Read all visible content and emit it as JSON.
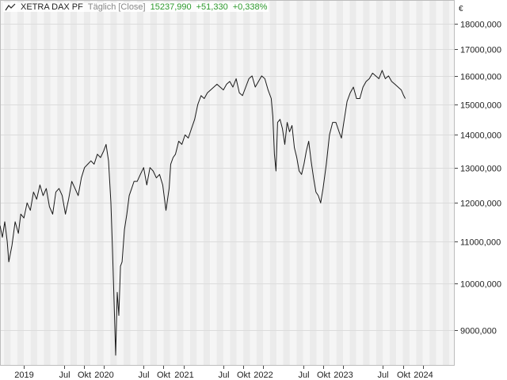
{
  "legend": {
    "symbol": "XETRA DAX PF",
    "period": "Täglich [Close]",
    "last": "15237,990",
    "change": "+51,330",
    "change_pct": "+0,338%"
  },
  "colors": {
    "band_light": "#f5f5f5",
    "band_dark": "#ebebeb",
    "grid": "#dcdcdc",
    "line": "#1a1a1a",
    "positive": "#2e9a2e"
  },
  "chart_data": {
    "type": "line",
    "title": "",
    "xlabel": "",
    "ylabel": "",
    "yunit": "€",
    "yscale": "log",
    "xlim": [
      2018.7,
      2024.4
    ],
    "ylim": [
      8300,
      19000
    ],
    "y_ticks": [
      9000,
      10000,
      11000,
      12000,
      13000,
      14000,
      15000,
      16000,
      17000,
      18000
    ],
    "y_tick_labels": [
      "9000,000",
      "10000,000",
      "11000,000",
      "12000,000",
      "13000,000",
      "14000,000",
      "15000,000",
      "16000,000",
      "17000,000",
      "18000,000"
    ],
    "x_ticks": [
      {
        "x": 2019.0,
        "label": "2019"
      },
      {
        "x": 2019.5,
        "label": "Jul"
      },
      {
        "x": 2019.75,
        "label": "Okt"
      },
      {
        "x": 2020.0,
        "label": "2020"
      },
      {
        "x": 2020.5,
        "label": "Jul"
      },
      {
        "x": 2020.75,
        "label": "Okt"
      },
      {
        "x": 2021.0,
        "label": "2021"
      },
      {
        "x": 2021.5,
        "label": "Jul"
      },
      {
        "x": 2021.75,
        "label": "Okt"
      },
      {
        "x": 2022.0,
        "label": "2022"
      },
      {
        "x": 2022.5,
        "label": "Jul"
      },
      {
        "x": 2022.75,
        "label": "Okt"
      },
      {
        "x": 2023.0,
        "label": "2023"
      },
      {
        "x": 2023.5,
        "label": "Jul"
      },
      {
        "x": 2023.75,
        "label": "Okt"
      },
      {
        "x": 2024.0,
        "label": "2024"
      }
    ],
    "grid": true,
    "legend": "top-left",
    "series": [
      {
        "x": [
          2018.7,
          2018.73,
          2018.76,
          2018.79,
          2018.81,
          2018.85,
          2018.89,
          2018.93,
          2018.96,
          2019.0,
          2019.04,
          2019.08,
          2019.12,
          2019.16,
          2019.2,
          2019.24,
          2019.28,
          2019.32,
          2019.36,
          2019.4,
          2019.44,
          2019.48,
          2019.52,
          2019.56,
          2019.6,
          2019.64,
          2019.68,
          2019.72,
          2019.76,
          2019.8,
          2019.84,
          2019.88,
          2019.92,
          2019.96,
          2020.0,
          2020.03,
          2020.06,
          2020.09,
          2020.11,
          2020.13,
          2020.15,
          2020.17,
          2020.19,
          2020.21,
          2020.23,
          2020.26,
          2020.29,
          2020.32,
          2020.35,
          2020.38,
          2020.42,
          2020.46,
          2020.5,
          2020.54,
          2020.58,
          2020.62,
          2020.66,
          2020.7,
          2020.74,
          2020.78,
          2020.82,
          2020.84,
          2020.87,
          2020.9,
          2020.94,
          2020.98,
          2021.02,
          2021.06,
          2021.1,
          2021.14,
          2021.18,
          2021.22,
          2021.26,
          2021.3,
          2021.34,
          2021.38,
          2021.42,
          2021.46,
          2021.5,
          2021.54,
          2021.58,
          2021.62,
          2021.66,
          2021.7,
          2021.74,
          2021.78,
          2021.82,
          2021.86,
          2021.9,
          2021.94,
          2021.98,
          2022.02,
          2022.06,
          2022.1,
          2022.12,
          2022.14,
          2022.16,
          2022.18,
          2022.21,
          2022.24,
          2022.27,
          2022.3,
          2022.33,
          2022.36,
          2022.39,
          2022.42,
          2022.45,
          2022.48,
          2022.51,
          2022.54,
          2022.57,
          2022.6,
          2022.63,
          2022.66,
          2022.69,
          2022.72,
          2022.75,
          2022.79,
          2022.83,
          2022.87,
          2022.91,
          2022.95,
          2022.98,
          2023.01,
          2023.05,
          2023.09,
          2023.13,
          2023.17,
          2023.21,
          2023.25,
          2023.29,
          2023.33,
          2023.37,
          2023.41,
          2023.45,
          2023.49,
          2023.53,
          2023.57,
          2023.61,
          2023.65,
          2023.69,
          2023.73,
          2023.76,
          2023.78
        ],
        "y": [
          11400,
          11100,
          11500,
          11000,
          10500,
          10900,
          11500,
          11200,
          11700,
          11600,
          12000,
          11800,
          12300,
          12100,
          12500,
          12200,
          12400,
          11900,
          11700,
          12300,
          12400,
          12200,
          11700,
          12100,
          12600,
          12400,
          12200,
          12700,
          13000,
          13100,
          13200,
          13100,
          13400,
          13300,
          13500,
          13700,
          13200,
          12000,
          10800,
          9600,
          8500,
          9800,
          9300,
          10400,
          10500,
          11300,
          11700,
          12200,
          12400,
          12600,
          12600,
          12800,
          13000,
          12500,
          13000,
          12900,
          12700,
          12800,
          12500,
          11800,
          12400,
          13100,
          13300,
          13400,
          13800,
          13700,
          14000,
          13900,
          14200,
          14500,
          15000,
          15300,
          15200,
          15400,
          15500,
          15600,
          15700,
          15600,
          15500,
          15700,
          15800,
          15600,
          15900,
          15400,
          15300,
          15600,
          15900,
          16000,
          15600,
          15800,
          16000,
          15900,
          15500,
          15200,
          14600,
          13400,
          12900,
          14400,
          14500,
          14200,
          13700,
          14400,
          14100,
          14300,
          13600,
          13300,
          12900,
          12800,
          13100,
          13500,
          13800,
          13200,
          12700,
          12300,
          12200,
          12000,
          12400,
          13100,
          14000,
          14400,
          14400,
          14100,
          13900,
          14400,
          15100,
          15400,
          15600,
          15200,
          15200,
          15600,
          15800,
          15900,
          16100,
          16000,
          15900,
          16200,
          15900,
          16000,
          15800,
          15700,
          15600,
          15500,
          15300,
          15200
        ]
      }
    ]
  }
}
